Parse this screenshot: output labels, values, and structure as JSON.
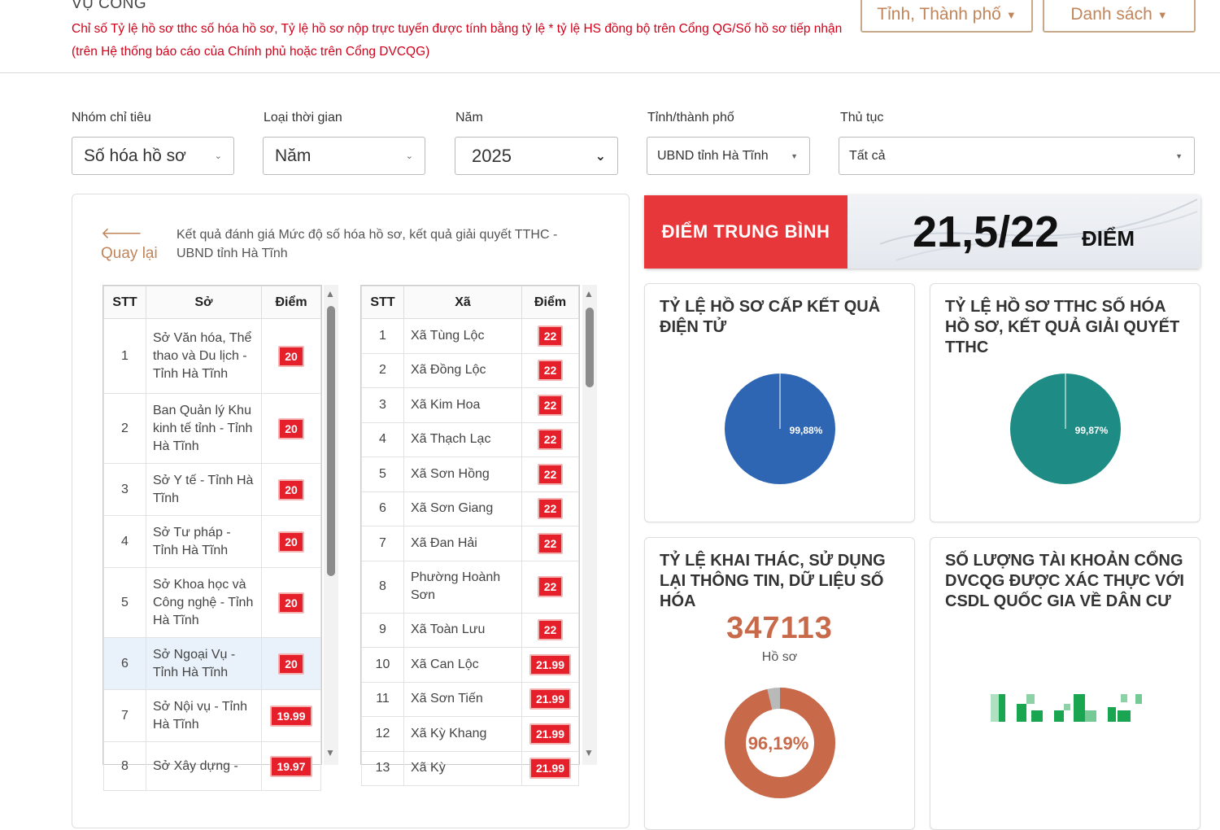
{
  "header": {
    "title_partial": "VỤ CÔNG",
    "note": "Chỉ số Tỷ lệ hồ sơ tthc số hóa hồ sơ, Tỷ lệ hồ sơ nộp trực tuyến được tính bằng tỷ lệ * tỷ lệ HS đồng bộ trên Cổng QG/Số hồ sơ tiếp nhận (trên Hệ thống báo cáo của Chính phủ hoặc trên Cổng DVCQG)",
    "btn_province": "Tỉnh, Thành phố",
    "btn_list": "Danh sách"
  },
  "filters": {
    "group_label": "Nhóm chỉ tiêu",
    "group_value": "Số hóa hồ sơ",
    "time_type_label": "Loại thời gian",
    "time_type_value": "Năm",
    "year_label": "Năm",
    "year_value": "2025",
    "province_label": "Tỉnh/thành phố",
    "province_value": "UBND tỉnh Hà Tĩnh",
    "procedure_label": "Thủ tục",
    "procedure_value": "Tất cả"
  },
  "left": {
    "back_label": "Quay lại",
    "result_title": "Kết quả đánh giá Mức độ số hóa hồ sơ, kết quả giải quyết TTHC - UBND tỉnh Hà Tĩnh",
    "dept_table": {
      "headers": [
        "STT",
        "Sở",
        "Điểm"
      ],
      "rows": [
        {
          "stt": "1",
          "name": "Sở Văn hóa, Thể thao và Du lịch - Tỉnh Hà Tĩnh",
          "score": "20"
        },
        {
          "stt": "2",
          "name": "Ban Quản lý Khu kinh tế tỉnh - Tỉnh Hà Tĩnh",
          "score": "20"
        },
        {
          "stt": "3",
          "name": "Sở Y tế - Tỉnh Hà Tĩnh",
          "score": "20"
        },
        {
          "stt": "4",
          "name": "Sở Tư pháp - Tỉnh Hà Tĩnh",
          "score": "20"
        },
        {
          "stt": "5",
          "name": "Sở Khoa học và Công nghệ - Tỉnh Hà Tĩnh",
          "score": "20"
        },
        {
          "stt": "6",
          "name": "Sở Ngoại Vụ - Tỉnh Hà Tĩnh",
          "score": "20"
        },
        {
          "stt": "7",
          "name": "Sở Nội vụ - Tỉnh Hà Tĩnh",
          "score": "19.99"
        },
        {
          "stt": "8",
          "name": "Sở Xây dựng -",
          "score": "19.97"
        }
      ]
    },
    "commune_table": {
      "headers": [
        "STT",
        "Xã",
        "Điểm"
      ],
      "rows": [
        {
          "stt": "1",
          "name": "Xã Tùng Lộc",
          "score": "22"
        },
        {
          "stt": "2",
          "name": "Xã Đồng Lộc",
          "score": "22"
        },
        {
          "stt": "3",
          "name": "Xã Kim Hoa",
          "score": "22"
        },
        {
          "stt": "4",
          "name": "Xã Thạch Lạc",
          "score": "22"
        },
        {
          "stt": "5",
          "name": "Xã Sơn Hồng",
          "score": "22"
        },
        {
          "stt": "6",
          "name": "Xã Sơn Giang",
          "score": "22"
        },
        {
          "stt": "7",
          "name": "Xã Đan Hải",
          "score": "22"
        },
        {
          "stt": "8",
          "name": "Phường Hoành Sơn",
          "score": "22"
        },
        {
          "stt": "9",
          "name": "Xã Toàn Lưu",
          "score": "22"
        },
        {
          "stt": "10",
          "name": "Xã Can Lộc",
          "score": "21.99"
        },
        {
          "stt": "11",
          "name": "Xã Sơn Tiến",
          "score": "21.99"
        },
        {
          "stt": "12",
          "name": "Xã Kỳ Khang",
          "score": "21.99"
        },
        {
          "stt": "13",
          "name": "Xã Kỳ",
          "score": "21.99"
        }
      ]
    }
  },
  "average": {
    "label": "ĐIỂM TRUNG BÌNH",
    "value": "21,5/22",
    "unit": "ĐIỂM"
  },
  "cards": {
    "electronic_result": {
      "title": "TỶ LỆ HỒ SƠ CẤP KẾT QUẢ ĐIỆN TỬ",
      "percent_label": "99,88%",
      "percent": 99.88,
      "color": "#2f66b3"
    },
    "digitized": {
      "title": "TỶ LỆ HỒ SƠ TTHC SỐ HÓA HỒ SƠ, KẾT QUẢ GIẢI QUYẾT TTHC",
      "percent_label": "99,87%",
      "percent": 99.87,
      "color": "#1e8c84"
    },
    "reuse": {
      "title": "TỶ LỆ KHAI THÁC, SỬ DỤNG LẠI THÔNG TIN, DỮ LIỆU SỐ HÓA",
      "count": "347113",
      "count_unit": "Hồ sơ",
      "percent_label": "96,19%",
      "percent": 96.19,
      "color": "#c8694a"
    },
    "accounts": {
      "title": "SỐ LƯỢNG TÀI KHOẢN CỔNG DVCQG ĐƯỢC XÁC THỰC VỚI CSDL QUỐC GIA VỀ DÂN CƯ",
      "color": "#1aa650"
    }
  }
}
